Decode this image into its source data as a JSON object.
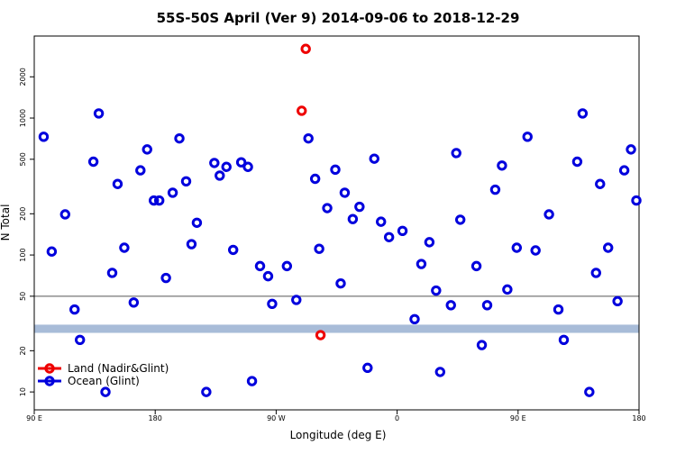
{
  "chart_data": {
    "type": "scatter",
    "title": "55S-50S April (Ver 9)   2014-09-06 to 2018-12-29",
    "x_label": "Longitude (deg E)",
    "y_label": "N Total",
    "log_y": true,
    "xlim": [
      90,
      540
    ],
    "xticks": [
      {
        "value": 90,
        "label": "90 E"
      },
      {
        "value": 180,
        "label": "180"
      },
      {
        "value": 270,
        "label": "90 W"
      },
      {
        "value": 360,
        "label": "0"
      },
      {
        "value": 450,
        "label": "90 E"
      },
      {
        "value": 540,
        "label": "180"
      }
    ],
    "ylim": [
      7.4,
      3970
    ],
    "yticks": [
      10,
      20,
      50,
      100,
      200,
      500,
      1000,
      2000
    ],
    "hline": 50,
    "band": [
      27,
      31
    ],
    "band_color": "#a8bcd8",
    "legend": "bottomleft",
    "series": [
      {
        "name": "Land (Nadir&Glint)",
        "color": "#ee0000",
        "x": [
          292,
          289,
          303
        ],
        "values": [
          3200,
          1130,
          26
        ]
      },
      {
        "name": "Ocean (Glint)",
        "color": "#0000dd",
        "x": [
          97,
          103,
          113,
          120,
          124,
          134,
          138,
          143,
          148,
          152,
          157,
          164,
          169,
          174,
          179,
          183,
          188,
          193,
          198,
          203,
          207,
          211,
          218,
          224,
          228,
          233,
          238,
          244,
          249,
          252,
          258,
          264,
          267,
          278,
          285,
          294,
          299,
          302,
          308,
          314,
          318,
          321,
          327,
          332,
          338,
          343,
          348,
          354,
          364,
          373,
          378,
          384,
          389,
          392,
          400,
          404,
          407,
          419,
          423,
          427,
          433,
          438,
          442,
          449,
          457,
          463,
          473,
          480,
          484,
          494,
          498,
          503,
          508,
          511,
          517,
          524,
          529,
          534,
          538
        ],
        "values": [
          730,
          106,
          198,
          40,
          24,
          480,
          1080,
          10,
          74,
          330,
          113,
          45,
          415,
          590,
          250,
          250,
          68,
          285,
          710,
          345,
          120,
          172,
          10,
          470,
          380,
          440,
          109,
          475,
          440,
          12,
          83,
          70,
          44,
          83,
          47,
          710,
          360,
          111,
          220,
          420,
          62,
          285,
          183,
          225,
          15,
          505,
          175,
          135,
          150,
          34,
          86,
          124,
          55,
          14,
          43,
          555,
          181,
          83,
          22,
          43,
          300,
          450,
          56,
          113,
          730,
          108,
          198,
          40,
          24,
          480,
          1080,
          10,
          74,
          330,
          113,
          46,
          415,
          590,
          250
        ]
      }
    ]
  }
}
